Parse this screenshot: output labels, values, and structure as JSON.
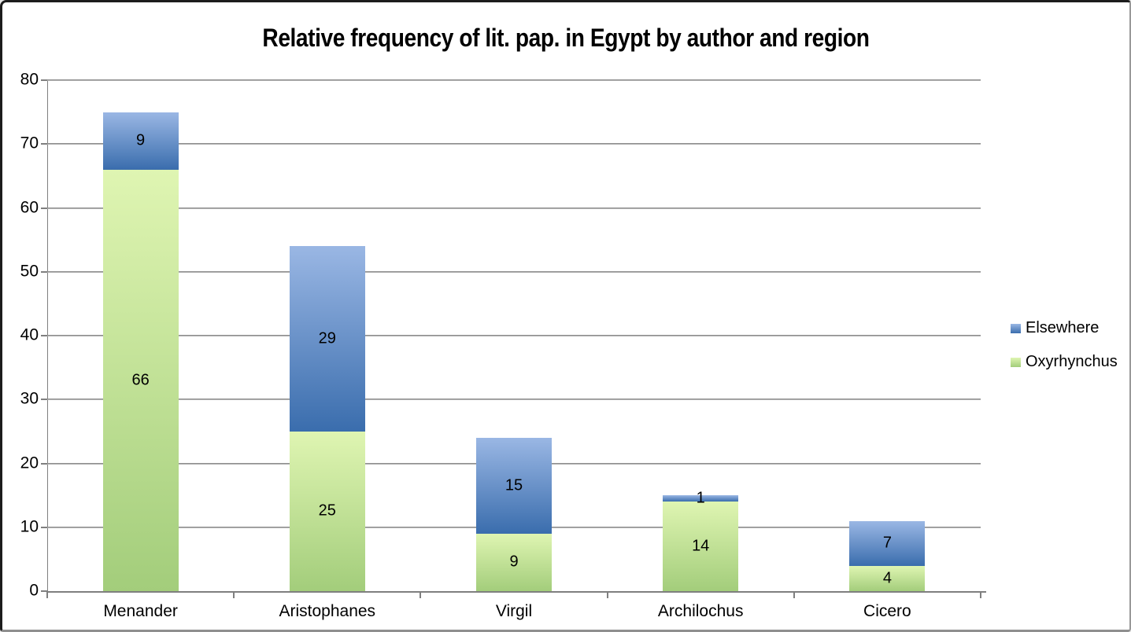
{
  "chart_data": {
    "type": "bar",
    "stacked": true,
    "title": "Relative frequency of lit. pap. in Egypt by author and region",
    "categories": [
      "Menander",
      "Aristophanes",
      "Virgil",
      "Archilochus",
      "Cicero"
    ],
    "series": [
      {
        "name": "Oxyrhynchus",
        "values": [
          66,
          25,
          9,
          14,
          4
        ],
        "color_top": "#dff5b2",
        "color_bottom": "#a3cd7b"
      },
      {
        "name": "Elsewhere",
        "values": [
          9,
          29,
          15,
          1,
          7
        ],
        "color_top": "#9ab7e4",
        "color_bottom": "#3a6dad"
      }
    ],
    "ylim": [
      0,
      80
    ],
    "ytick_step": 10,
    "ytick_labels": [
      "0",
      "10",
      "20",
      "30",
      "40",
      "50",
      "60",
      "70",
      "80"
    ],
    "grid": true,
    "data_labels": true,
    "legend_position": "right",
    "legend": [
      {
        "label": "Elsewhere",
        "series_index": 1
      },
      {
        "label": "Oxyrhynchus",
        "series_index": 0
      }
    ],
    "colors": {
      "gridline": "#7e7e7e",
      "axis": "#7f7f7f",
      "text": "#000000"
    }
  }
}
